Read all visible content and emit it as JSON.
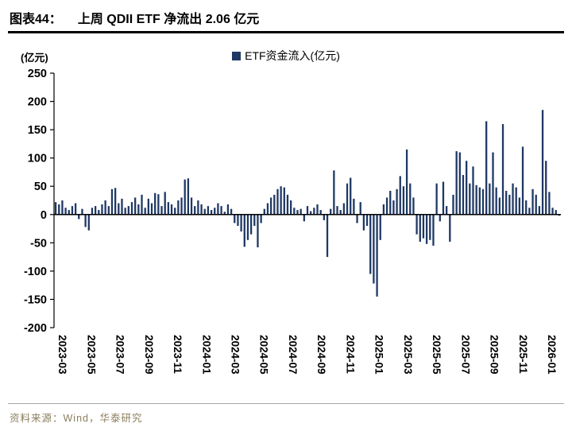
{
  "header": {
    "figure_label": "图表44：",
    "title": "上周 QDII ETF 净流出 2.06 亿元"
  },
  "legend": {
    "label": "ETF资金流入(亿元)"
  },
  "axes": {
    "y_unit": "(亿元)"
  },
  "footer": {
    "source": "资料来源：Wind，华泰研究"
  },
  "colors": {
    "bar": "#1F3864",
    "axis": "#000000",
    "source_text": "#8A7D5C",
    "footer_rule": "#A6A6A6"
  },
  "chart_data": {
    "type": "bar",
    "title": "上周 QDII ETF 净流出 2.06 亿元",
    "series_name": "ETF资金流入(亿元)",
    "ylabel": "(亿元)",
    "ylim": [
      -200,
      250
    ],
    "yticks": [
      250,
      200,
      150,
      100,
      50,
      0,
      -50,
      -100,
      -150,
      -200
    ],
    "grid": false,
    "legend_position": "top",
    "x_tick_labels": [
      "2023-03",
      "2023-05",
      "2023-07",
      "2023-09",
      "2023-11",
      "2024-01",
      "2024-03",
      "2024-05",
      "2024-07",
      "2024-09",
      "2024-11",
      "2025-01",
      "2025-03",
      "2025-05",
      "2025-07",
      "2025-09",
      "2025-11",
      "2026-01"
    ],
    "weeks_per_tick": 8.69,
    "values": [
      22,
      18,
      25,
      12,
      8,
      15,
      20,
      -8,
      10,
      -22,
      -28,
      12,
      15,
      8,
      18,
      25,
      15,
      45,
      47,
      20,
      28,
      12,
      15,
      22,
      30,
      18,
      35,
      12,
      28,
      20,
      38,
      36,
      15,
      40,
      22,
      18,
      12,
      25,
      30,
      62,
      64,
      30,
      15,
      25,
      18,
      10,
      15,
      8,
      12,
      20,
      15,
      5,
      18,
      10,
      -15,
      -20,
      -30,
      -57,
      -45,
      -35,
      -20,
      -58,
      -15,
      10,
      20,
      30,
      35,
      45,
      50,
      48,
      35,
      25,
      12,
      8,
      10,
      -12,
      15,
      6,
      12,
      18,
      8,
      -10,
      -75,
      10,
      78,
      15,
      8,
      20,
      55,
      65,
      28,
      -15,
      22,
      -28,
      -20,
      -105,
      -122,
      -145,
      -45,
      18,
      30,
      42,
      25,
      45,
      68,
      50,
      115,
      55,
      30,
      -35,
      -48,
      -42,
      -52,
      -45,
      -55,
      55,
      -12,
      58,
      15,
      -48,
      35,
      112,
      110,
      70,
      95,
      55,
      85,
      52,
      48,
      45,
      165,
      55,
      110,
      48,
      30,
      160,
      42,
      35,
      55,
      48,
      30,
      120,
      25,
      12,
      45,
      35,
      15,
      185,
      95,
      40,
      12,
      8,
      -2
    ]
  }
}
